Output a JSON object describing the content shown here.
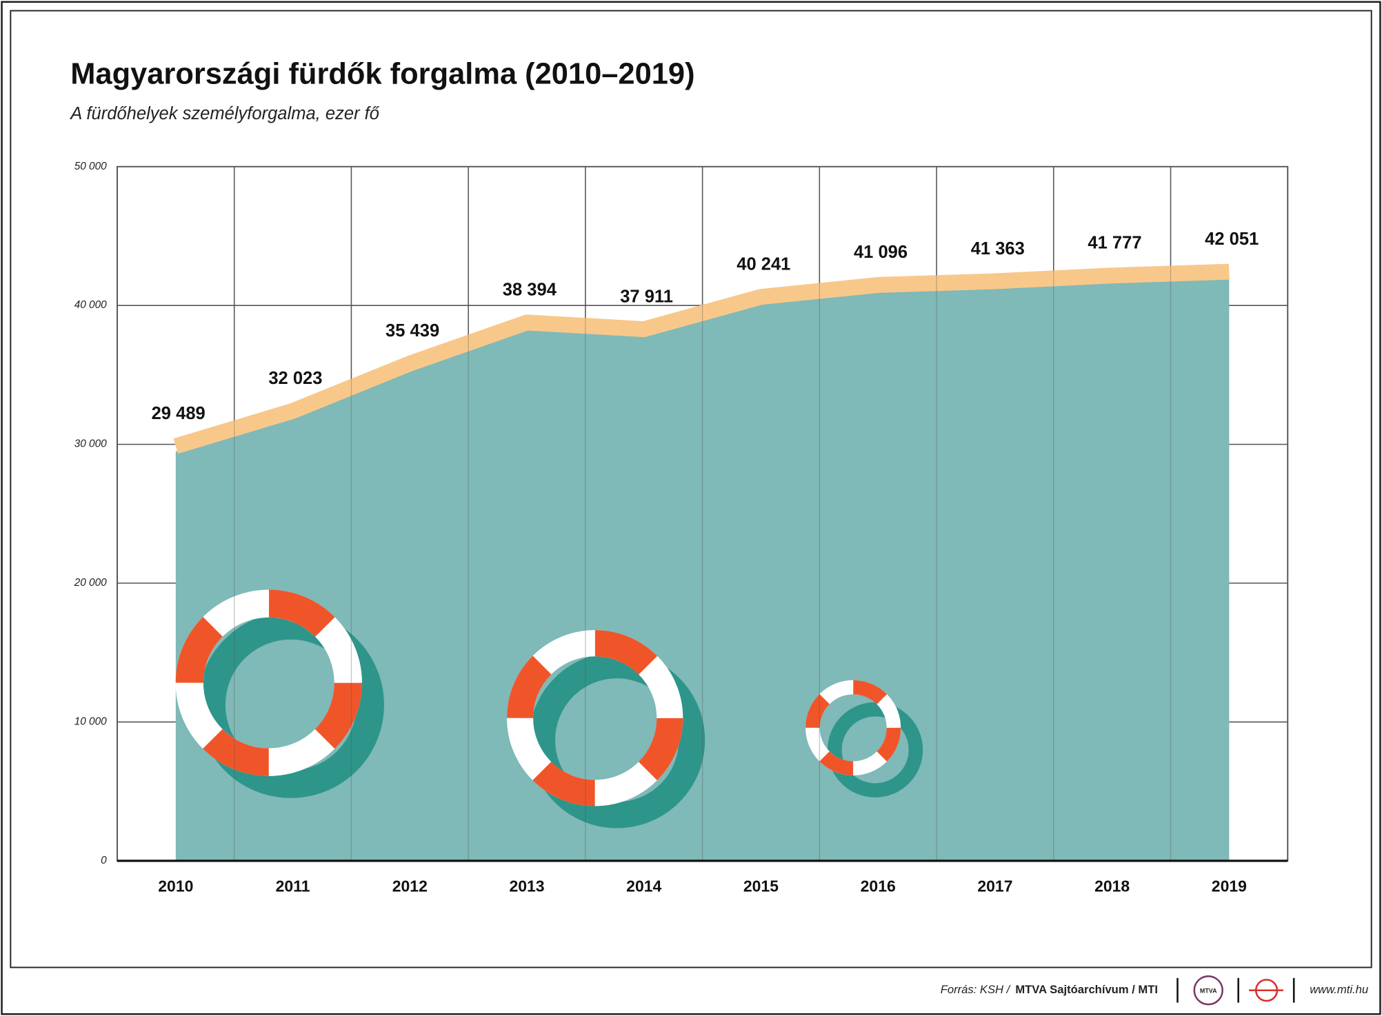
{
  "chart_data": {
    "type": "area",
    "title": "Magyarországi fürdők forgalma (2010–2019)",
    "subtitle": "A fürdőhelyek személyforgalma, ezer fő",
    "categories": [
      "2010",
      "2011",
      "2012",
      "2013",
      "2014",
      "2015",
      "2016",
      "2017",
      "2018",
      "2019"
    ],
    "values": [
      29489,
      32023,
      35439,
      38394,
      37911,
      40241,
      41096,
      41363,
      41777,
      42051
    ],
    "value_labels": [
      "29 489",
      "32 023",
      "35 439",
      "38 394",
      "37 911",
      "40 241",
      "41 096",
      "41 363",
      "41 777",
      "42 051"
    ],
    "color": "#7fb9b8",
    "line_color": "#f8c88a",
    "ylim": [
      0,
      50000
    ],
    "yticks": [
      0,
      {
        "value": 10000,
        "label": "10 000"
      },
      {
        "value": 20000,
        "label": "20 000"
      },
      {
        "value": 30000,
        "label": "30 000"
      },
      {
        "value": 40000,
        "label": "40 000"
      },
      {
        "value": 50000,
        "label": "50 000"
      }
    ],
    "grid": true,
    "source_prefix": "Forrás: KSH /",
    "source_org": "MTVA Sajtóarchívum / MTI",
    "logo_text": "MTVA",
    "website": "www.mti.hu"
  }
}
